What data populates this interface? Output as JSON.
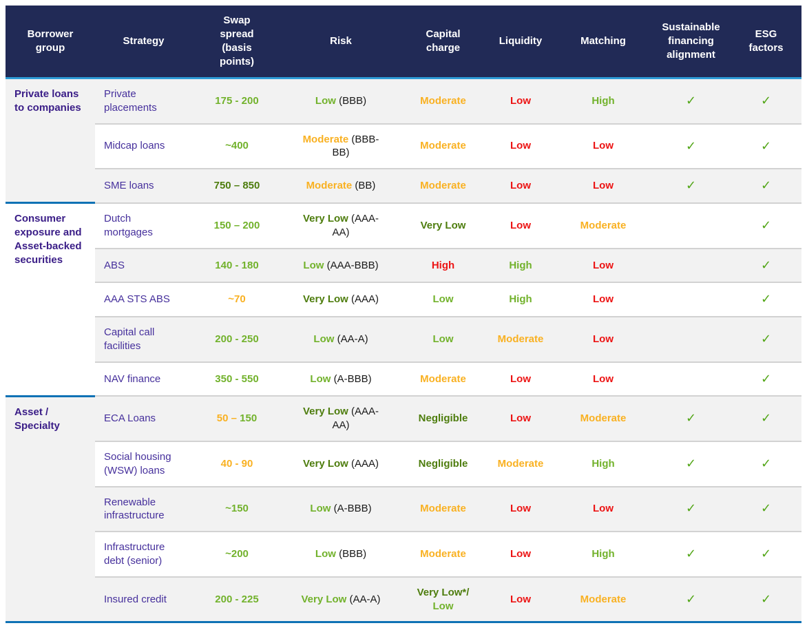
{
  "palette": {
    "header_bg": "#212A56",
    "header_underline_blue": "#2E9BD6",
    "separator_blue": "#0F72B5",
    "separator_gray": "#D2D2D2",
    "stripe": "#F2F2F2",
    "group_label_purple": "#3A1D87",
    "strategy_purple": "#46309C",
    "bright_green": "#72B22C",
    "dark_green": "#4E7D0E",
    "amber": "#F9B122",
    "red": "#EC1414",
    "check_green": "#52A617",
    "rating_black": "#1A1A1A"
  },
  "icons": {
    "check": "✓"
  },
  "header": {
    "columns": [
      "Borrower group",
      "Strategy",
      "Swap spread (basis points)",
      "Risk",
      "Capital charge",
      "Liquidity",
      "Matching",
      "Sustainable financing alignment",
      "ESG factors"
    ]
  },
  "groups": [
    {
      "name": "Private loans to companies",
      "rows": [
        {
          "strategy": "Private placements",
          "swap": [
            {
              "text": "175 - 200",
              "color": "bright_green"
            }
          ],
          "swap_bg_white": true,
          "risk": {
            "parts": [
              {
                "text": "Low",
                "color": "bright_green"
              }
            ],
            "rating": "(BBB)"
          },
          "capital": [
            {
              "text": "Moderate",
              "color": "amber"
            }
          ],
          "liquidity": [
            {
              "text": "Low",
              "color": "red"
            }
          ],
          "matching": [
            {
              "text": "High",
              "color": "bright_green"
            }
          ],
          "sustainable": true,
          "esg": true
        },
        {
          "strategy": "Midcap loans",
          "swap": [
            {
              "text": "~400",
              "color": "bright_green"
            }
          ],
          "risk": {
            "parts": [
              {
                "text": "Moderate",
                "color": "amber"
              }
            ],
            "rating": "(BBB-BB)"
          },
          "capital": [
            {
              "text": "Moderate",
              "color": "amber"
            }
          ],
          "liquidity": [
            {
              "text": "Low",
              "color": "red"
            }
          ],
          "matching": [
            {
              "text": "Low",
              "color": "red"
            }
          ],
          "sustainable": true,
          "esg": true
        },
        {
          "strategy": "SME loans",
          "swap": [
            {
              "text": "750 – 850",
              "color": "dark_green"
            }
          ],
          "risk": {
            "parts": [
              {
                "text": "Moderate",
                "color": "amber"
              }
            ],
            "rating": "(BB)"
          },
          "capital": [
            {
              "text": "Moderate",
              "color": "amber"
            }
          ],
          "liquidity": [
            {
              "text": "Low",
              "color": "red"
            }
          ],
          "matching": [
            {
              "text": "Low",
              "color": "red"
            }
          ],
          "sustainable": true,
          "esg": true
        }
      ]
    },
    {
      "name": "Consumer exposure and Asset-backed securities",
      "rows": [
        {
          "strategy": "Dutch mortgages",
          "swap": [
            {
              "text": "150 – 200",
              "color": "bright_green"
            }
          ],
          "risk": {
            "parts": [
              {
                "text": "Very Low",
                "color": "dark_green"
              }
            ],
            "rating": "(AAA-AA)"
          },
          "capital": [
            {
              "text": "Very Low",
              "color": "dark_green"
            }
          ],
          "liquidity": [
            {
              "text": "Low",
              "color": "red"
            }
          ],
          "matching": [
            {
              "text": "Moderate",
              "color": "amber"
            }
          ],
          "sustainable": false,
          "esg": true
        },
        {
          "strategy": "ABS",
          "swap": [
            {
              "text": "140 - 180",
              "color": "bright_green"
            }
          ],
          "risk": {
            "parts": [
              {
                "text": "Low",
                "color": "bright_green"
              }
            ],
            "rating": "(AAA-BBB)"
          },
          "capital": [
            {
              "text": "High",
              "color": "red"
            }
          ],
          "liquidity": [
            {
              "text": "High",
              "color": "bright_green"
            }
          ],
          "matching": [
            {
              "text": "Low",
              "color": "red"
            }
          ],
          "sustainable": false,
          "esg": true
        },
        {
          "strategy": "AAA STS ABS",
          "swap": [
            {
              "text": "~70",
              "color": "amber"
            }
          ],
          "risk": {
            "parts": [
              {
                "text": "Very Low",
                "color": "dark_green"
              }
            ],
            "rating": "(AAA)"
          },
          "capital": [
            {
              "text": "Low",
              "color": "bright_green"
            }
          ],
          "liquidity": [
            {
              "text": "High",
              "color": "bright_green"
            }
          ],
          "matching": [
            {
              "text": "Low",
              "color": "red"
            }
          ],
          "sustainable": false,
          "esg": true
        },
        {
          "strategy": "Capital call facilities",
          "swap": [
            {
              "text": "200 - 250",
              "color": "bright_green"
            }
          ],
          "risk": {
            "parts": [
              {
                "text": "Low",
                "color": "bright_green"
              }
            ],
            "rating": "(AA-A)"
          },
          "capital": [
            {
              "text": "Low",
              "color": "bright_green"
            }
          ],
          "liquidity": [
            {
              "text": "Moderate",
              "color": "amber"
            }
          ],
          "matching": [
            {
              "text": "Low",
              "color": "red"
            }
          ],
          "sustainable": false,
          "esg": true
        },
        {
          "strategy": "NAV finance",
          "swap": [
            {
              "text": "350 - 550",
              "color": "bright_green"
            }
          ],
          "risk": {
            "parts": [
              {
                "text": "Low",
                "color": "bright_green"
              }
            ],
            "rating": "(A-BBB)"
          },
          "capital": [
            {
              "text": "Moderate",
              "color": "amber"
            }
          ],
          "liquidity": [
            {
              "text": "Low",
              "color": "red"
            }
          ],
          "matching": [
            {
              "text": "Low",
              "color": "red"
            }
          ],
          "sustainable": false,
          "esg": true
        }
      ]
    },
    {
      "name": "Asset / Specialty",
      "rows": [
        {
          "strategy": "ECA Loans",
          "swap": [
            {
              "text": "50 –",
              "color": "amber"
            },
            {
              "text": "150",
              "color": "bright_green"
            }
          ],
          "risk": {
            "parts": [
              {
                "text": "Very Low",
                "color": "dark_green"
              }
            ],
            "rating": "(AAA-AA)"
          },
          "capital": [
            {
              "text": "Negligible",
              "color": "dark_green"
            }
          ],
          "liquidity": [
            {
              "text": "Low",
              "color": "red"
            }
          ],
          "matching": [
            {
              "text": "Moderate",
              "color": "amber"
            }
          ],
          "sustainable": true,
          "esg": true
        },
        {
          "strategy": "Social housing (WSW) loans",
          "swap": [
            {
              "text": "40 - 90",
              "color": "amber"
            }
          ],
          "risk": {
            "parts": [
              {
                "text": "Very Low",
                "color": "dark_green"
              }
            ],
            "rating": "(AAA)"
          },
          "capital": [
            {
              "text": "Negligible",
              "color": "dark_green"
            }
          ],
          "liquidity": [
            {
              "text": "Moderate",
              "color": "amber"
            }
          ],
          "matching": [
            {
              "text": "High",
              "color": "bright_green"
            }
          ],
          "sustainable": true,
          "esg": true
        },
        {
          "strategy": "Renewable infrastructure",
          "swap": [
            {
              "text": "~150",
              "color": "bright_green"
            }
          ],
          "risk": {
            "parts": [
              {
                "text": "Low",
                "color": "bright_green"
              }
            ],
            "rating": "(A-BBB)"
          },
          "capital": [
            {
              "text": "Moderate",
              "color": "amber"
            }
          ],
          "liquidity": [
            {
              "text": "Low",
              "color": "red"
            }
          ],
          "matching": [
            {
              "text": "Low",
              "color": "red"
            }
          ],
          "sustainable": true,
          "esg": true
        },
        {
          "strategy": "Infrastructure debt (senior)",
          "swap": [
            {
              "text": "~200",
              "color": "bright_green"
            }
          ],
          "risk": {
            "parts": [
              {
                "text": "Low",
                "color": "bright_green"
              }
            ],
            "rating": "(BBB)"
          },
          "capital": [
            {
              "text": "Moderate",
              "color": "amber"
            }
          ],
          "liquidity": [
            {
              "text": "Low",
              "color": "red"
            }
          ],
          "matching": [
            {
              "text": "High",
              "color": "bright_green"
            }
          ],
          "sustainable": true,
          "esg": true
        },
        {
          "strategy": "Insured credit",
          "swap": [
            {
              "text": "200 - 225",
              "color": "bright_green"
            }
          ],
          "risk": {
            "parts": [
              {
                "text": "Very Low",
                "color": "bright_green"
              }
            ],
            "rating": "(AA-A)"
          },
          "capital": [
            {
              "text": "Very Low*/",
              "color": "dark_green"
            },
            {
              "text": "Low",
              "color": "bright_green"
            }
          ],
          "liquidity": [
            {
              "text": "Low",
              "color": "red"
            }
          ],
          "matching": [
            {
              "text": "Moderate",
              "color": "amber"
            }
          ],
          "sustainable": true,
          "esg": true
        }
      ]
    }
  ]
}
